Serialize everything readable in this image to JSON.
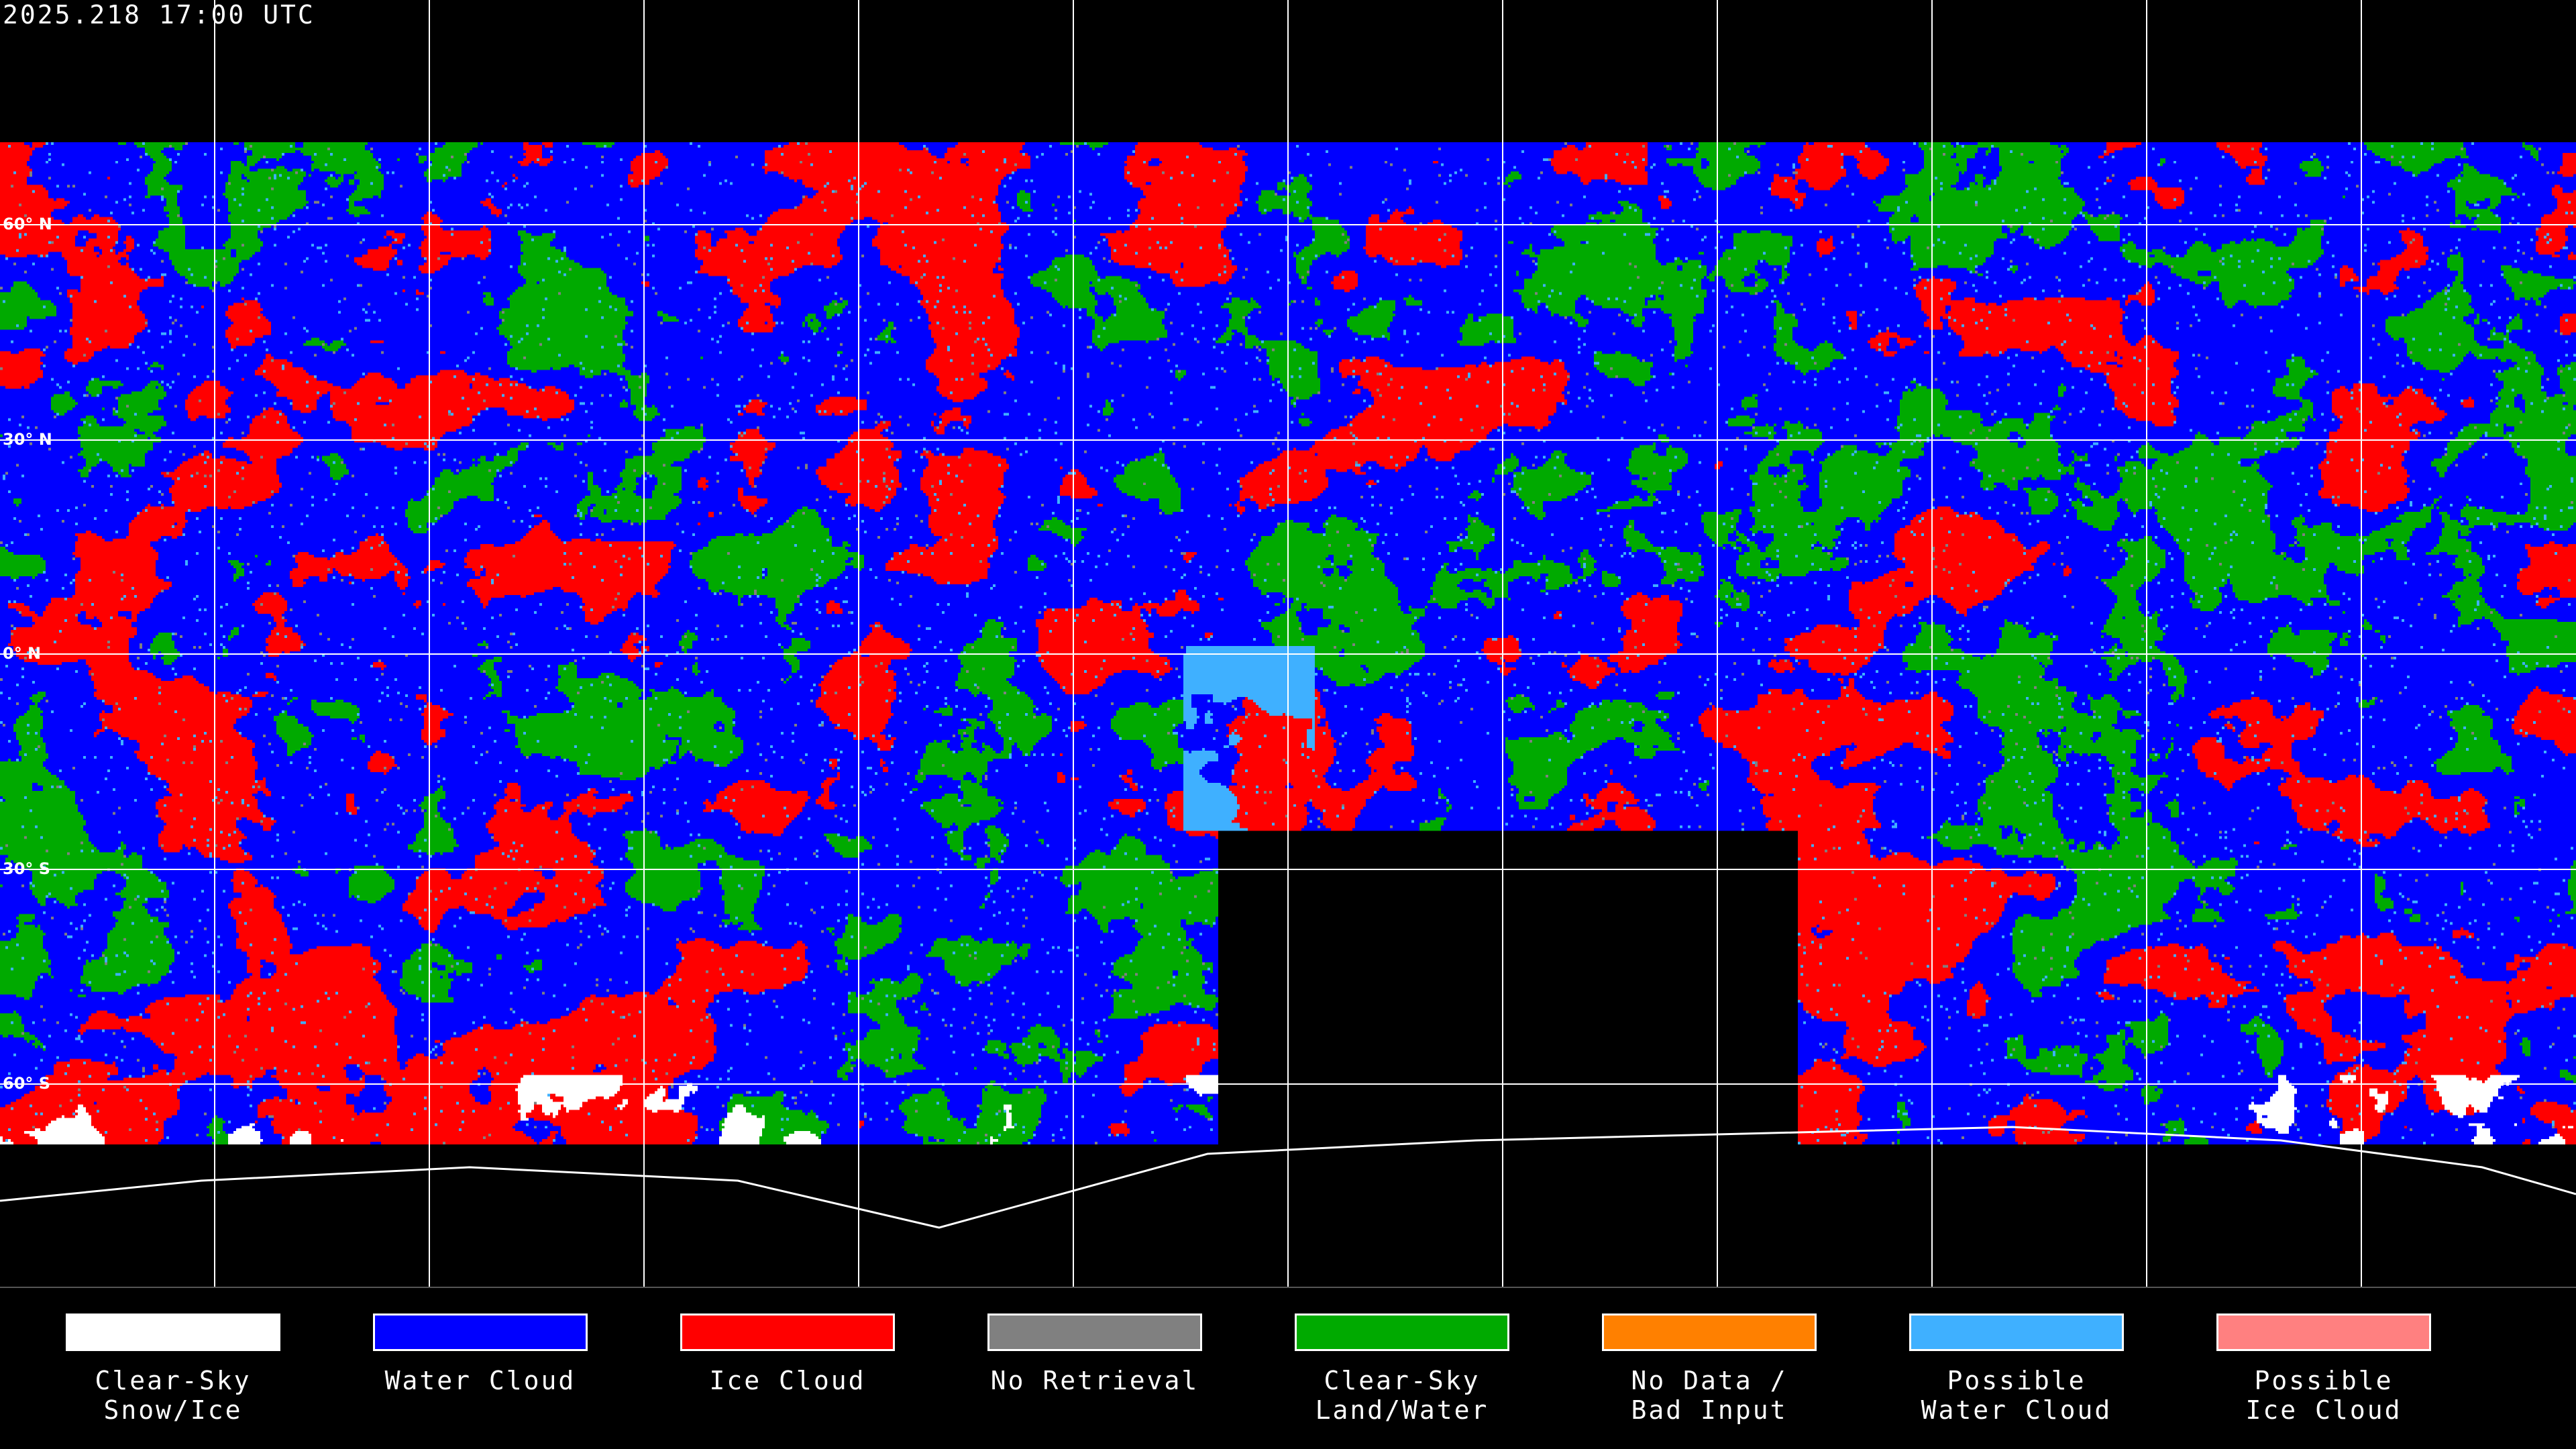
{
  "header": {
    "timestamp": "2025.218 17:00 UTC"
  },
  "map": {
    "projection": "equirectangular",
    "latitude_labels": [
      "60° N",
      "30° N",
      "0° N",
      "30° S",
      "60° S"
    ],
    "gridline_color": "#ffffff",
    "coastline_color": "#ffffff",
    "background": "#000000"
  },
  "legend": [
    {
      "label": "Clear-Sky\nSnow/Ice",
      "color": "#ffffff"
    },
    {
      "label": "Water Cloud",
      "color": "#0000ff"
    },
    {
      "label": "Ice Cloud",
      "color": "#ff0000"
    },
    {
      "label": "No Retrieval",
      "color": "#808080"
    },
    {
      "label": "Clear-Sky\nLand/Water",
      "color": "#00aa00"
    },
    {
      "label": "No Data /\nBad Input",
      "color": "#ff8000"
    },
    {
      "label": "Possible\nWater Cloud",
      "color": "#3fb0ff"
    },
    {
      "label": "Possible\nIce Cloud",
      "color": "#ff8080"
    }
  ]
}
